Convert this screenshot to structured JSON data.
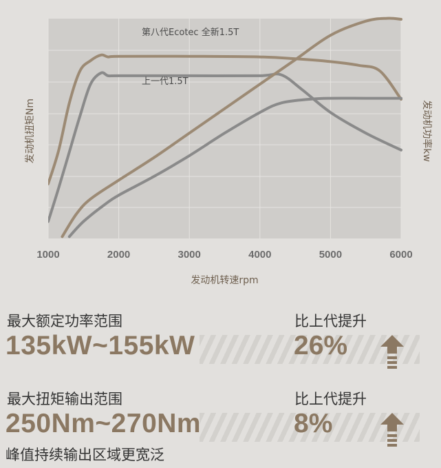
{
  "chart_data": {
    "type": "line",
    "x_min": 1000,
    "x_max": 6000,
    "x_ticks": [
      "1000",
      "2000",
      "3000",
      "4000",
      "5000",
      "6000"
    ],
    "xlabel": "发动机转速rpm",
    "ylabel_left": "发动机扭矩Nm",
    "ylabel_right": "发动机功率kw",
    "grid": true,
    "series": [
      {
        "name": "第八代Ecotec 全新1.5T",
        "kind": "torque",
        "color": "#9c8a74",
        "x": [
          1000,
          1150,
          1300,
          1450,
          1600,
          1750,
          1850,
          2000,
          3000,
          4000,
          4500,
          5000,
          5400,
          5700,
          6000
        ],
        "y": [
          0.29,
          0.47,
          0.72,
          0.89,
          0.945,
          0.975,
          0.965,
          0.968,
          0.968,
          0.965,
          0.955,
          0.94,
          0.92,
          0.89,
          0.74
        ]
      },
      {
        "name": "上一代1.5T",
        "kind": "torque",
        "color": "#8a8a8a",
        "x": [
          1000,
          1150,
          1300,
          1450,
          1600,
          1750,
          1850,
          2000,
          3000,
          4000,
          4300,
          4600,
          5000,
          5500,
          6000
        ],
        "y": [
          0.09,
          0.27,
          0.46,
          0.65,
          0.82,
          0.88,
          0.865,
          0.865,
          0.865,
          0.865,
          0.87,
          0.79,
          0.67,
          0.56,
          0.47
        ]
      },
      {
        "name": "",
        "kind": "power",
        "color": "#9c8a74",
        "x": [
          1200,
          1400,
          1600,
          2000,
          2500,
          3000,
          3500,
          4000,
          4500,
          5000,
          5500,
          5800,
          6000
        ],
        "y": [
          0.01,
          0.13,
          0.21,
          0.31,
          0.43,
          0.56,
          0.69,
          0.82,
          0.95,
          1.08,
          1.155,
          1.17,
          1.165
        ]
      },
      {
        "name": "",
        "kind": "power",
        "color": "#8a8a8a",
        "x": [
          1300,
          1500,
          1800,
          2000,
          2500,
          3000,
          3500,
          4000,
          4300,
          4700,
          5000,
          5500,
          6000
        ],
        "y": [
          0.01,
          0.09,
          0.18,
          0.23,
          0.33,
          0.44,
          0.56,
          0.67,
          0.72,
          0.74,
          0.745,
          0.745,
          0.745
        ]
      }
    ]
  },
  "stats": [
    {
      "label": "最大额定功率范围",
      "value": "135kW~155kW",
      "compare_label": "比上代提升",
      "percent": "26%"
    },
    {
      "label": "最大扭矩输出范围",
      "value": "250Nm~270Nm",
      "compare_label": "比上代提升",
      "percent": "8%"
    }
  ],
  "footer_note": "峰值持续输出区域更宽泛",
  "colors": {
    "background": "#e2e0dd",
    "plot_background": "#cfcdca",
    "accent_gold": "#9c8a74",
    "value_text": "#8b7862",
    "previous_gray": "#8a8a8a"
  },
  "icons": {
    "increase": "up-arrow-icon"
  }
}
